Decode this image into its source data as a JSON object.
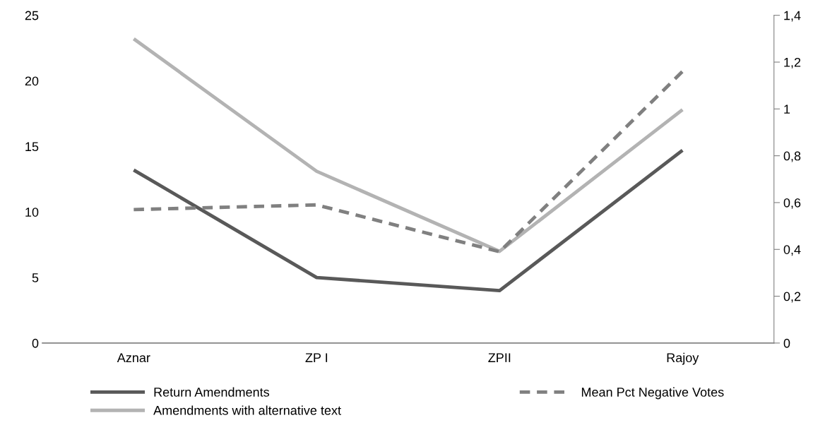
{
  "chart_data": {
    "type": "line",
    "categories": [
      "Aznar",
      "ZP I",
      "ZPII",
      "Rajoy"
    ],
    "series": [
      {
        "name": "Return Amendments",
        "color": "#595959",
        "values": [
          13.2,
          5.0,
          4.0,
          14.7
        ],
        "line_style": "solid"
      },
      {
        "name": "Mean Pct Negative Votes",
        "color": "#808080",
        "values": [
          0.57,
          0.59,
          0.39,
          1.16
        ],
        "axis": "y2",
        "line_style": "dashed"
      },
      {
        "name": "Amendments with alternative text",
        "color": "#b3b3b3",
        "values": [
          23.2,
          13.1,
          7.0,
          17.8
        ],
        "line_style": "solid"
      }
    ],
    "ylim": [
      0,
      25
    ],
    "yticks": [
      0,
      5,
      10,
      15,
      20,
      25
    ],
    "y2lim": [
      0,
      1.4
    ],
    "y2ticks": [
      0,
      {
        "value": 0.2,
        "label": "0,2"
      },
      {
        "value": 0.4,
        "label": "0,4"
      },
      {
        "value": 0.6,
        "label": "0,6"
      },
      {
        "value": 0.8,
        "label": "0,8"
      },
      1,
      {
        "value": 1.2,
        "label": "1,2"
      },
      {
        "value": 1.4,
        "label": "1,4"
      }
    ],
    "grid": false,
    "legend": "bottom",
    "marker": "none"
  }
}
